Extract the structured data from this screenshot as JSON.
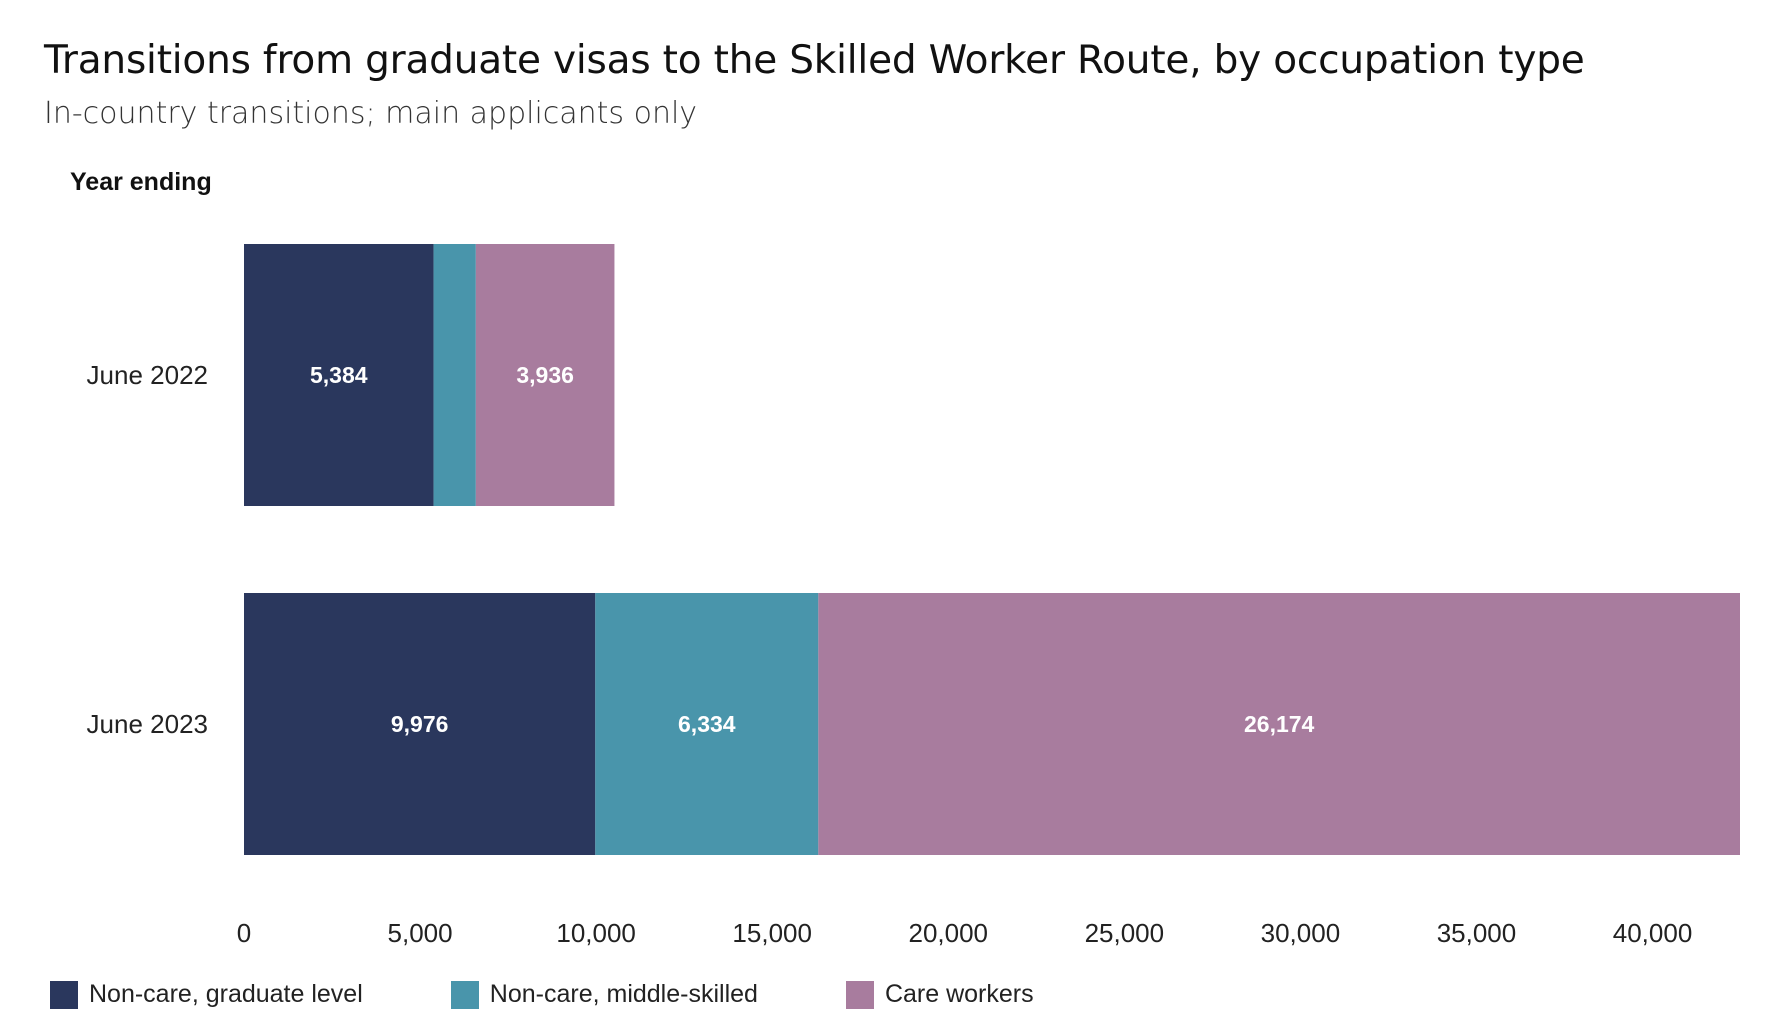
{
  "chart_data": {
    "type": "bar",
    "orientation": "horizontal",
    "stacked": true,
    "title": "Transitions from graduate visas to the Skilled Worker Route, by occupation type",
    "subtitle": "In-country transitions; main applicants only",
    "ylabel": "Year ending",
    "categories": [
      "June 2022",
      "June 2023"
    ],
    "series": [
      {
        "name": "Non-care, graduate level",
        "values": [
          5384,
          9976
        ],
        "labels": [
          "5,384",
          "9,976"
        ],
        "color": "#2a375d"
      },
      {
        "name": "Non-care, middle-skilled",
        "values": [
          1200,
          6334
        ],
        "labels": [
          "",
          "6,334"
        ],
        "color": "#4995ab"
      },
      {
        "name": "Care workers",
        "values": [
          3936,
          26174
        ],
        "labels": [
          "3,936",
          "26,174"
        ],
        "color": "#a87c9e"
      }
    ],
    "xlim": [
      0,
      42484
    ],
    "xticks": [
      0,
      5000,
      10000,
      15000,
      20000,
      25000,
      30000,
      35000,
      40000
    ],
    "xtick_labels": [
      "0",
      "5,000",
      "10,000",
      "15,000",
      "20,000",
      "25,000",
      "30,000",
      "35,000",
      "40,000"
    ],
    "grid": false,
    "legend": "bottom"
  }
}
